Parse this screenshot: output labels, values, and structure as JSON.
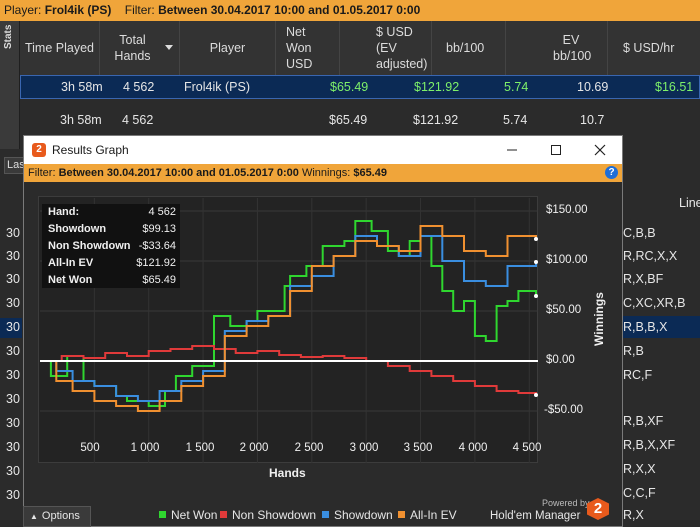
{
  "top_filter": {
    "player_label": "Player:",
    "player_value": "Frol4ik (PS)",
    "filter_label": "Filter:",
    "filter_value": "Between 30.04.2017 10:00 and 01.05.2017 0:00"
  },
  "side_tab": {
    "label": "Stats"
  },
  "table": {
    "headers": [
      "Time Played",
      "Total Hands",
      "Player",
      "Net Won USD",
      "$ USD (EV adjusted)",
      "bb/100",
      "EV bb/100",
      "$ USD/hr"
    ],
    "selected_row": {
      "time": "3h 58m",
      "hands": "4 562",
      "player": "Frol4ik (PS)",
      "net_won": "$65.49",
      "ev_adjusted": "$121.92",
      "bb100": "5.74",
      "ev_bb100": "10.69",
      "usd_hr": "$16.51"
    },
    "total_row": {
      "time": "3h 58m",
      "hands": "4 562",
      "player": "",
      "net_won": "$65.49",
      "ev_adjusted": "$121.92",
      "bb100": "5.74",
      "ev_bb100": "10.7",
      "usd_hr": ""
    }
  },
  "left_strip": {
    "last_box": "Las",
    "numbers": [
      "30",
      "30",
      "30",
      "30",
      "30",
      "30",
      "30",
      "30",
      "30",
      "30",
      "30",
      "30",
      "30"
    ]
  },
  "right_strip": {
    "header": "Line",
    "lines": [
      "C,B,B",
      "R,RC,X,X",
      "R,X,BF",
      "C,XC,XR,B",
      "R,B,B,X",
      "R,B",
      "RC,F",
      "R,B,XF",
      "R,B,X,XF",
      "R,X,X",
      "C,C,F",
      "R,X"
    ]
  },
  "graph_window": {
    "title": "Results Graph",
    "logo": "2",
    "filter_label": "Filter:",
    "filter_value": "Between 30.04.2017 10:00 and 01.05.2017 0:00",
    "winnings_label": "Winnings:",
    "winnings_value": "$65.49",
    "help": "?",
    "stats_box": [
      {
        "label": "Hand:",
        "value": "4 562"
      },
      {
        "label": "Showdown",
        "value": "$99.13"
      },
      {
        "label": "Non Showdown",
        "value": "-$33.64"
      },
      {
        "label": "All-In EV",
        "value": "$121.92"
      },
      {
        "label": "Net Won",
        "value": "$65.49"
      }
    ],
    "powered_by": "Powered by",
    "brand": "Hold'em Manager",
    "options": "Options"
  },
  "chart_data": {
    "type": "line",
    "xlabel": "Hands",
    "ylabel": "Winnings",
    "xlim": [
      0,
      4562
    ],
    "ylim": [
      -60,
      160
    ],
    "x_ticks": [
      500,
      1000,
      1500,
      2000,
      2500,
      3000,
      3500,
      4000,
      4500
    ],
    "x_tick_labels": [
      "500",
      "1 000",
      "1 500",
      "2 000",
      "2 500",
      "3 000",
      "3 500",
      "4 000",
      "4 500"
    ],
    "y_ticks": [
      150,
      100,
      50,
      0,
      -50
    ],
    "y_tick_labels": [
      "$150.00",
      "$100.00",
      "$50.00",
      "$0.00",
      "-$50.00"
    ],
    "series": [
      {
        "name": "Net Won",
        "color": "#2fd62f",
        "x": [
          0,
          100,
          250,
          400,
          500,
          700,
          800,
          1000,
          1150,
          1250,
          1400,
          1600,
          1750,
          1900,
          2000,
          2100,
          2250,
          2300,
          2450,
          2600,
          2800,
          2900,
          3050,
          3200,
          3300,
          3400,
          3500,
          3600,
          3700,
          3800,
          3900,
          4000,
          4100,
          4200,
          4300,
          4400,
          4562
        ],
        "y": [
          0,
          -15,
          5,
          -20,
          -25,
          -35,
          -40,
          -45,
          -30,
          -15,
          -5,
          45,
          35,
          40,
          50,
          50,
          75,
          85,
          95,
          115,
          120,
          140,
          130,
          110,
          105,
          120,
          125,
          95,
          70,
          50,
          60,
          25,
          20,
          55,
          60,
          70,
          65
        ]
      },
      {
        "name": "Non Showdown",
        "color": "#e03a3a",
        "x": [
          0,
          200,
          400,
          600,
          800,
          1000,
          1200,
          1400,
          1600,
          1800,
          2000,
          2200,
          2400,
          2600,
          2800,
          3000,
          3200,
          3400,
          3600,
          3800,
          4000,
          4200,
          4400,
          4562
        ],
        "y": [
          0,
          5,
          3,
          8,
          5,
          10,
          12,
          15,
          12,
          8,
          10,
          6,
          4,
          5,
          3,
          0,
          -5,
          -10,
          -15,
          -20,
          -25,
          -30,
          -32,
          -34
        ]
      },
      {
        "name": "Showdown",
        "color": "#3a8ee0",
        "x": [
          0,
          150,
          300,
          500,
          700,
          900,
          1100,
          1300,
          1500,
          1700,
          1900,
          2100,
          2300,
          2500,
          2700,
          2900,
          3100,
          3300,
          3500,
          3700,
          3900,
          4100,
          4300,
          4562
        ],
        "y": [
          0,
          -10,
          -20,
          -25,
          -35,
          -40,
          -30,
          -20,
          -10,
          30,
          40,
          45,
          75,
          85,
          105,
          125,
          115,
          105,
          125,
          100,
          80,
          75,
          95,
          99
        ]
      },
      {
        "name": "All-In EV",
        "color": "#f09030",
        "x": [
          0,
          150,
          300,
          500,
          700,
          900,
          1100,
          1300,
          1500,
          1700,
          1900,
          2100,
          2300,
          2500,
          2700,
          2900,
          3100,
          3300,
          3500,
          3700,
          3900,
          4100,
          4300,
          4562
        ],
        "y": [
          0,
          -20,
          -30,
          -40,
          -45,
          -50,
          -40,
          -25,
          -15,
          25,
          35,
          45,
          70,
          95,
          105,
          120,
          115,
          110,
          135,
          125,
          110,
          105,
          125,
          122
        ]
      }
    ]
  }
}
